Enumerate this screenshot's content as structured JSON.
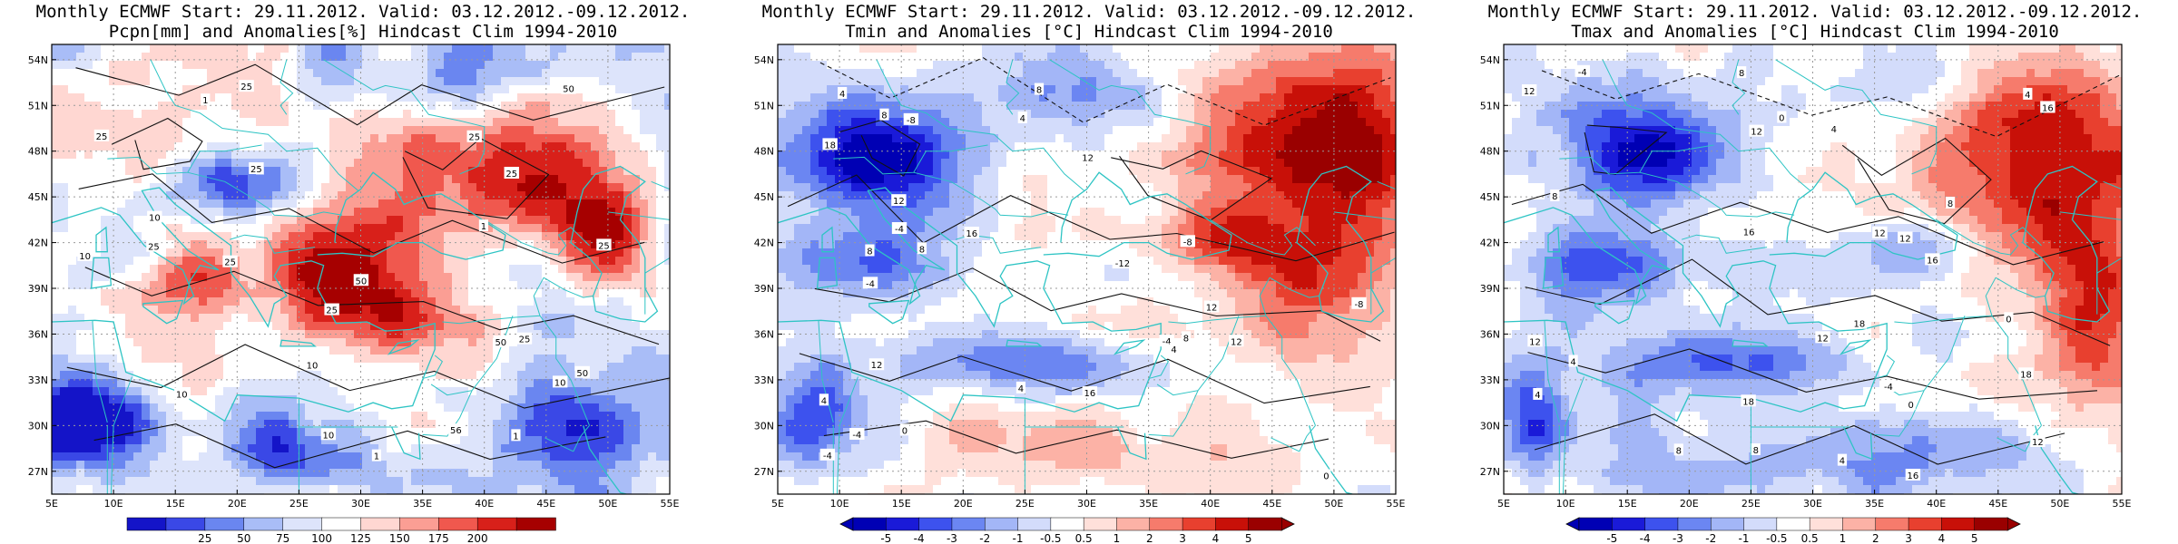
{
  "colors": {
    "coast": "#2ec4c4",
    "contour": "#111111",
    "grid": "#9a9a9a",
    "precip_scale": [
      "#1414c8",
      "#3a48e6",
      "#6a86f0",
      "#a9bdf7",
      "#dde4fb",
      "#ffffff",
      "#ffd7d2",
      "#fb9e94",
      "#f0584e",
      "#d8201a",
      "#a60000"
    ],
    "temp_scale": [
      "#0000b4",
      "#1a1ad8",
      "#3d52ee",
      "#6b86f2",
      "#a3b6f7",
      "#d3dcfb",
      "#ffffff",
      "#ffe0da",
      "#fcb2a6",
      "#f67b6c",
      "#e8402f",
      "#c81008",
      "#9a0000"
    ]
  },
  "panels": [
    {
      "title_line1": "Monthly ECMWF Start: 29.11.2012. Valid: 03.12.2012.-09.12.2012.",
      "title_line2": "Pcpn[mm] and Anomalies[%] Hindcast Clim 1994-2010",
      "colorbar": {
        "ticks": [
          "25",
          "50",
          "75",
          "100",
          "125",
          "150",
          "175",
          "200"
        ],
        "arrows": false
      },
      "contour_labels": [
        "10",
        "25",
        "25",
        "25",
        "50",
        "25",
        "25",
        "25",
        "50",
        "25",
        "10",
        "50",
        "25",
        "10",
        "50",
        "10",
        "56",
        "10",
        "25",
        "1",
        "1",
        "1",
        "1",
        "10",
        "25"
      ]
    },
    {
      "title_line1": "Monthly ECMWF Start: 29.11.2012. Valid: 03.12.2012.-09.12.2012.",
      "title_line2": "Tmin and Anomalies [°C] Hindcast Clim 1994-2010",
      "colorbar": {
        "ticks": [
          "-5",
          "-4",
          "-3",
          "-2",
          "-1",
          "-0.5",
          "0.5",
          "1",
          "2",
          "3",
          "4",
          "5"
        ],
        "arrows": true
      },
      "contour_labels": [
        "-8",
        "-4",
        "-4",
        "-4",
        "-4",
        "-8",
        "-12",
        "-8",
        "-4",
        "0",
        "4",
        "4",
        "8",
        "12",
        "8",
        "12",
        "12",
        "16",
        "16",
        "18",
        "12",
        "0",
        "8",
        "4",
        "8",
        "4",
        "12",
        "8",
        "4"
      ]
    },
    {
      "title_line1": "Monthly ECMWF Start: 29.11.2012. Valid: 03.12.2012.-09.12.2012.",
      "title_line2": "Tmax and Anomalies [°C] Hindcast Clim 1994-2010",
      "colorbar": {
        "ticks": [
          "-5",
          "-4",
          "-3",
          "-2",
          "-1",
          "-0.5",
          "0.5",
          "1",
          "2",
          "3",
          "4",
          "5"
        ],
        "arrows": true
      },
      "contour_labels": [
        "0",
        "-4",
        "0",
        "-4",
        "4",
        "8",
        "12",
        "8",
        "4",
        "0",
        "12",
        "8",
        "4",
        "12",
        "16",
        "12",
        "18",
        "18",
        "16",
        "16",
        "18",
        "12",
        "8",
        "4",
        "8",
        "12",
        "4",
        "16",
        "12"
      ]
    }
  ],
  "chart_data": [
    {
      "type": "heatmap",
      "title": "Monthly ECMWF Start: 29.11.2012. Valid: 03.12.2012.-09.12.2012. Pcpn[mm] and Anomalies[%] Hindcast Clim 1994-2010",
      "x_ticks": [
        "5E",
        "10E",
        "15E",
        "20E",
        "25E",
        "30E",
        "35E",
        "40E",
        "45E",
        "50E",
        "55E"
      ],
      "y_ticks": [
        "27N",
        "30N",
        "33N",
        "36N",
        "39N",
        "42N",
        "45N",
        "48N",
        "51N",
        "54N"
      ],
      "xlim": [
        5,
        55
      ],
      "ylim": [
        25.5,
        55
      ],
      "colorbar_ticks": [
        25,
        50,
        75,
        100,
        125,
        150,
        175,
        200
      ],
      "grid": true
    },
    {
      "type": "heatmap",
      "title": "Monthly ECMWF Start: 29.11.2012. Valid: 03.12.2012.-09.12.2012. Tmin and Anomalies [°C] Hindcast Clim 1994-2010",
      "x_ticks": [
        "5E",
        "10E",
        "15E",
        "20E",
        "25E",
        "30E",
        "35E",
        "40E",
        "45E",
        "50E",
        "55E"
      ],
      "y_ticks": [
        "27N",
        "30N",
        "33N",
        "36N",
        "39N",
        "42N",
        "45N",
        "48N",
        "51N",
        "54N"
      ],
      "xlim": [
        5,
        55
      ],
      "ylim": [
        25.5,
        55
      ],
      "colorbar_ticks": [
        -5,
        -4,
        -3,
        -2,
        -1,
        -0.5,
        0.5,
        1,
        2,
        3,
        4,
        5
      ],
      "grid": true
    },
    {
      "type": "heatmap",
      "title": "Monthly ECMWF Start: 29.11.2012. Valid: 03.12.2012.-09.12.2012. Tmax and Anomalies [°C] Hindcast Clim 1994-2010",
      "x_ticks": [
        "5E",
        "10E",
        "15E",
        "20E",
        "25E",
        "30E",
        "35E",
        "40E",
        "45E",
        "50E",
        "55E"
      ],
      "y_ticks": [
        "27N",
        "30N",
        "33N",
        "36N",
        "39N",
        "42N",
        "45N",
        "48N",
        "51N",
        "54N"
      ],
      "xlim": [
        5,
        55
      ],
      "ylim": [
        25.5,
        55
      ],
      "colorbar_ticks": [
        -5,
        -4,
        -3,
        -2,
        -1,
        -0.5,
        0.5,
        1,
        2,
        3,
        4,
        5
      ],
      "grid": true
    }
  ]
}
